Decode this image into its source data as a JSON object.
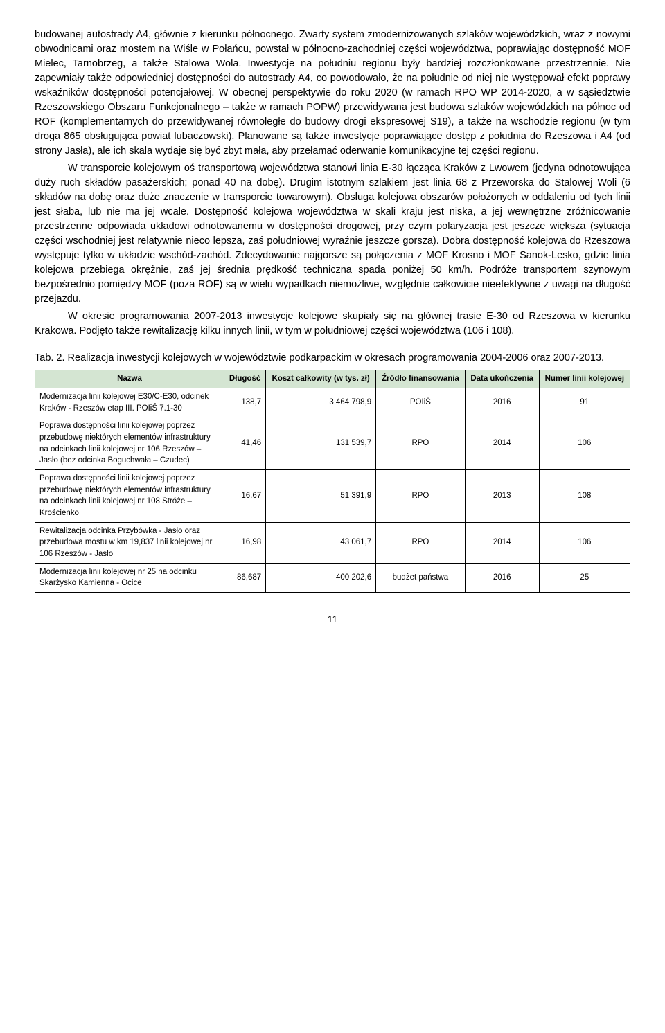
{
  "paragraphs": {
    "p1": "budowanej autostrady A4, głównie z kierunku północnego. Zwarty system zmodernizowanych szlaków wojewódzkich, wraz z nowymi obwodnicami oraz mostem na Wiśle w Połańcu, powstał w północno-zachodniej części województwa, poprawiając dostępność MOF Mielec, Tarnobrzeg, a także Stalowa Wola. Inwestycje na południu regionu były bardziej rozczłonkowane przestrzennie. Nie zapewniały także odpowiedniej dostępności do autostrady A4, co powodowało, że na południe od niej nie występował efekt poprawy wskaźników dostępności potencjałowej. W obecnej perspektywie do roku 2020 (w ramach RPO WP 2014-2020, a w sąsiedztwie Rzeszowskiego Obszaru Funkcjonalnego – także w ramach POPW) przewidywana jest budowa szlaków wojewódzkich na północ od ROF (komplementarnych do przewidywanej równoległe do budowy drogi ekspresowej S19), a także na wschodzie regionu (w tym droga 865 obsługująca powiat lubaczowski). Planowane są także inwestycje poprawiające dostęp z południa do Rzeszowa i A4 (od strony Jasła), ale ich skala wydaje się być zbyt mała, aby przełamać oderwanie komunikacyjne tej części regionu.",
    "p2": "W transporcie kolejowym oś transportową województwa stanowi linia E-30 łącząca Kraków z Lwowem (jedyna odnotowująca duży ruch składów pasażerskich; ponad 40 na dobę). Drugim istotnym szlakiem jest linia 68 z Przeworska do Stalowej Woli (6 składów na dobę oraz duże znaczenie w transporcie towarowym). Obsługa kolejowa obszarów położonych w oddaleniu od tych linii jest słaba, lub nie ma jej wcale. Dostępność kolejowa województwa w skali kraju jest niska, a jej wewnętrzne zróżnicowanie przestrzenne odpowiada układowi odnotowanemu w dostępności drogowej, przy czym polaryzacja jest jeszcze większa (sytuacja części wschodniej jest relatywnie nieco lepsza, zaś południowej wyraźnie jeszcze gorsza). Dobra dostępność kolejowa do Rzeszowa występuje tylko w układzie wschód-zachód. Zdecydowanie najgorsze są połączenia z MOF Krosno i MOF Sanok-Lesko, gdzie linia kolejowa przebiega okrężnie, zaś jej średnia prędkość techniczna spada poniżej 50 km/h. Podróże transportem szynowym bezpośrednio pomiędzy MOF (poza ROF) są w wielu wypadkach niemożliwe, względnie całkowicie nieefektywne z uwagi na długość przejazdu.",
    "p3": "W okresie programowania 2007-2013 inwestycje kolejowe skupiały się na głównej trasie E-30 od Rzeszowa w kierunku Krakowa. Podjęto także rewitalizację kilku innych linii, w tym w południowej części województwa (106 i 108)."
  },
  "caption": "Tab. 2. Realizacja inwestycji kolejowych w województwie podkarpackim w okresach programowania 2004-2006 oraz 2007-2013.",
  "table": {
    "headers": {
      "name": "Nazwa",
      "length": "Długość",
      "cost": "Koszt całkowity (w tys. zł)",
      "source": "Źródło finansowania",
      "date": "Data ukończenia",
      "lineno": "Numer linii kolejowej"
    },
    "rows": [
      {
        "name": "Modernizacja linii kolejowej E30/C-E30, odcinek Kraków - Rzeszów etap III. POIiŚ 7.1-30",
        "length": "138,7",
        "cost": "3 464 798,9",
        "source": "POIiŚ",
        "date": "2016",
        "lineno": "91"
      },
      {
        "name": "Poprawa dostępności linii kolejowej poprzez przebudowę niektórych elementów infrastruktury na odcinkach linii kolejowej nr 106 Rzeszów – Jasło (bez odcinka Boguchwała – Czudec)",
        "length": "41,46",
        "cost": "131 539,7",
        "source": "RPO",
        "date": "2014",
        "lineno": "106"
      },
      {
        "name": "Poprawa dostępności linii kolejowej poprzez przebudowę niektórych elementów infrastruktury na odcinkach linii kolejowej nr 108 Stróże – Krościenko",
        "length": "16,67",
        "cost": "51 391,9",
        "source": "RPO",
        "date": "2013",
        "lineno": "108"
      },
      {
        "name": "Rewitalizacja odcinka Przybówka - Jasło oraz przebudowa mostu w km 19,837 linii kolejowej nr 106 Rzeszów - Jasło",
        "length": "16,98",
        "cost": "43 061,7",
        "source": "RPO",
        "date": "2014",
        "lineno": "106"
      },
      {
        "name": "Modernizacja linii kolejowej nr 25 na odcinku Skarżysko Kamienna - Ocice",
        "length": "86,687",
        "cost": "400 202,6",
        "source": "budżet państwa",
        "date": "2016",
        "lineno": "25"
      }
    ]
  },
  "pageNumber": "11"
}
